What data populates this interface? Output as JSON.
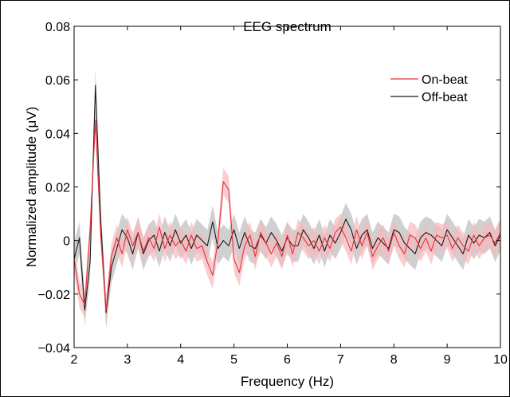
{
  "chart_data": {
    "type": "line",
    "title": "EEG spectrum",
    "xlabel": "Frequency (Hz)",
    "ylabel": "Normalized  amplitude (μV)",
    "xlim": [
      2,
      10
    ],
    "ylim": [
      -0.04,
      0.08
    ],
    "x_ticks": [
      2,
      3,
      4,
      5,
      6,
      7,
      8,
      9,
      10
    ],
    "y_ticks": [
      -0.04,
      -0.02,
      0,
      0.02,
      0.04,
      0.06,
      0.08
    ],
    "x_tick_labels": [
      "2",
      "3",
      "4",
      "5",
      "6",
      "7",
      "8",
      "9",
      "10"
    ],
    "y_tick_labels": [
      "−0.04",
      "−0.02",
      "0",
      "0.02",
      "0.04",
      "0.06",
      "0.08"
    ],
    "grid": false,
    "legend_position": "top-right",
    "x": [
      2.0,
      2.1,
      2.2,
      2.3,
      2.4,
      2.5,
      2.6,
      2.7,
      2.8,
      2.9,
      3.0,
      3.1,
      3.2,
      3.3,
      3.4,
      3.5,
      3.6,
      3.7,
      3.8,
      3.9,
      4.0,
      4.1,
      4.2,
      4.3,
      4.4,
      4.5,
      4.6,
      4.7,
      4.8,
      4.9,
      5.0,
      5.1,
      5.2,
      5.3,
      5.4,
      5.5,
      5.6,
      5.7,
      5.8,
      5.9,
      6.0,
      6.1,
      6.2,
      6.3,
      6.4,
      6.5,
      6.6,
      6.7,
      6.8,
      6.9,
      7.0,
      7.1,
      7.2,
      7.3,
      7.4,
      7.5,
      7.6,
      7.7,
      7.8,
      7.9,
      8.0,
      8.1,
      8.2,
      8.3,
      8.4,
      8.5,
      8.6,
      8.7,
      8.8,
      8.9,
      9.0,
      9.1,
      9.2,
      9.3,
      9.4,
      9.5,
      9.6,
      9.7,
      9.8,
      9.9,
      10.0
    ],
    "series": [
      {
        "name": "On-beat",
        "color": "#e8303a",
        "band_color": "#f7b9bd",
        "values": [
          -0.007,
          -0.02,
          -0.024,
          0.004,
          0.045,
          0.002,
          -0.026,
          -0.006,
          0.001,
          -0.005,
          0.004,
          -0.002,
          0.003,
          -0.004,
          0.001,
          -0.003,
          0.005,
          -0.003,
          0.002,
          -0.002,
          0.0,
          -0.004,
          0.002,
          -0.003,
          -0.002,
          -0.008,
          -0.013,
          0.0,
          0.022,
          0.019,
          -0.007,
          -0.012,
          -0.002,
          0.002,
          -0.006,
          0.003,
          -0.001,
          -0.005,
          -0.001,
          -0.006,
          0.002,
          -0.005,
          0.003,
          0.001,
          -0.002,
          0.0,
          -0.004,
          0.001,
          -0.003,
          0.003,
          0.005,
          0.001,
          -0.004,
          0.004,
          -0.002,
          0.003,
          -0.006,
          -0.002,
          0.001,
          -0.004,
          0.003,
          -0.002,
          -0.005,
          0.002,
          0.001,
          -0.003,
          0.001,
          -0.004,
          0.002,
          0.001,
          0.002,
          -0.003,
          0.001,
          -0.002,
          -0.004,
          0.002,
          -0.002,
          0.001,
          0.002,
          -0.001,
          0.003
        ],
        "band_halfwidth": 0.005
      },
      {
        "name": "Off-beat",
        "color": "#1a1a1a",
        "band_color": "#c8c8c8",
        "values": [
          -0.007,
          0.001,
          -0.026,
          -0.008,
          0.058,
          0.007,
          -0.027,
          -0.01,
          -0.003,
          0.004,
          0.001,
          -0.005,
          0.003,
          -0.005,
          0.0,
          0.002,
          -0.004,
          0.003,
          -0.002,
          0.004,
          -0.001,
          0.002,
          -0.003,
          0.002,
          0.0,
          -0.002,
          0.007,
          -0.003,
          0.0,
          -0.002,
          0.004,
          -0.003,
          0.003,
          -0.002,
          -0.003,
          0.002,
          -0.001,
          0.003,
          0.0,
          -0.004,
          0.001,
          -0.002,
          -0.002,
          0.004,
          0.001,
          -0.003,
          0.002,
          -0.004,
          0.002,
          -0.001,
          0.003,
          0.008,
          0.004,
          -0.003,
          0.002,
          0.004,
          -0.003,
          0.001,
          -0.001,
          -0.003,
          0.004,
          0.003,
          -0.001,
          -0.003,
          -0.005,
          0.001,
          0.003,
          0.002,
          0.0,
          -0.002,
          0.004,
          0.001,
          -0.002,
          -0.005,
          0.002,
          -0.001,
          0.002,
          0.001,
          0.003,
          -0.002,
          0.002
        ],
        "band_halfwidth": 0.006
      }
    ]
  }
}
